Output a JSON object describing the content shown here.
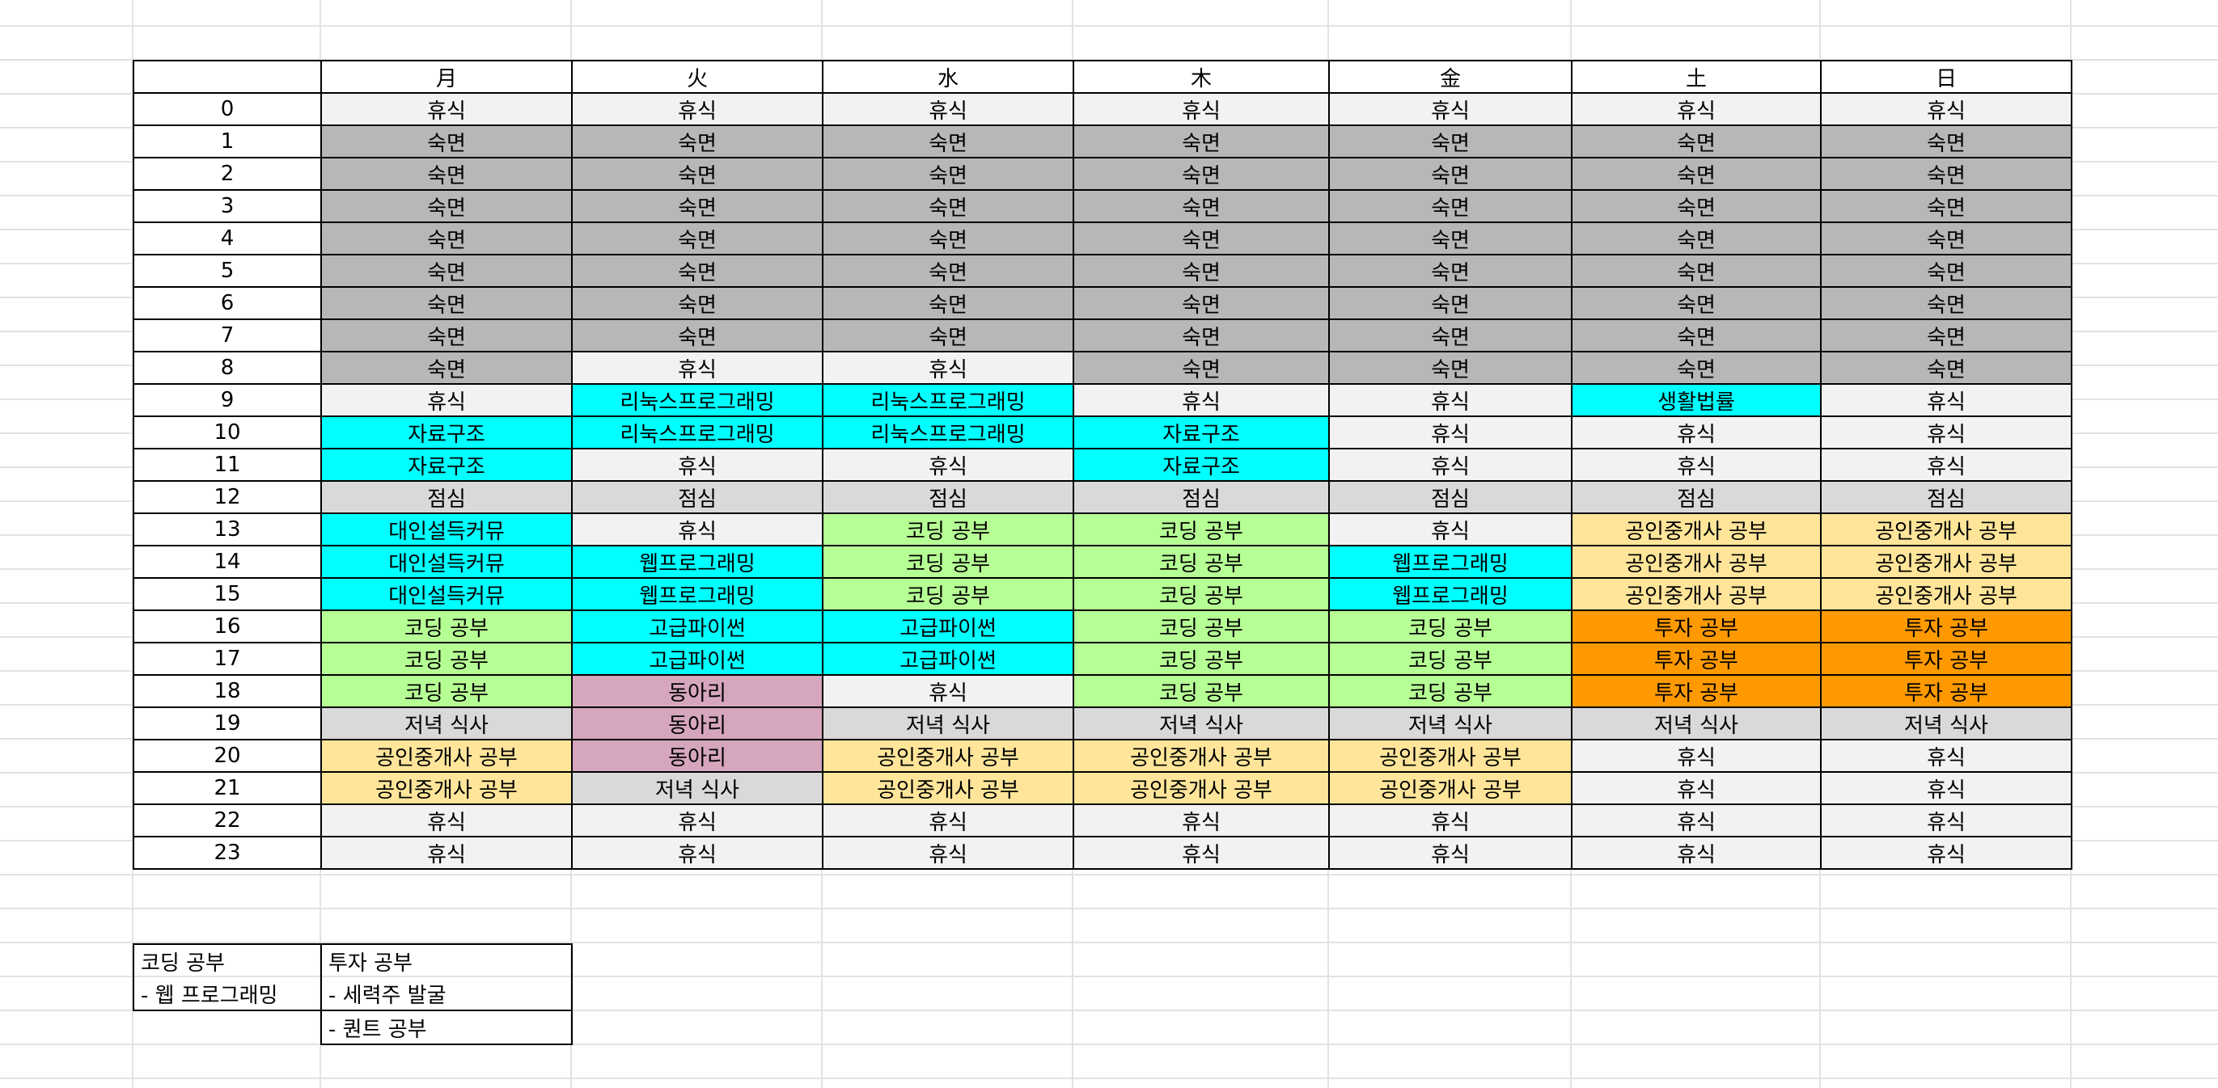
{
  "colors": {
    "rest": "#f2f2f2",
    "sleep": "#b7b7b7",
    "meal": "#d9d9d9",
    "study": "#00ffff",
    "coding": "#b6ff94",
    "realty": "#ffe599",
    "invest": "#ff9900",
    "club": "#d5a6bd",
    "gridline": "#e2e2e2"
  },
  "timetable": {
    "days": [
      "月",
      "火",
      "水",
      "木",
      "金",
      "土",
      "日"
    ],
    "rows": [
      {
        "hour": "0",
        "cells": [
          {
            "text": "휴식",
            "cat": "rest"
          },
          {
            "text": "휴식",
            "cat": "rest"
          },
          {
            "text": "휴식",
            "cat": "rest"
          },
          {
            "text": "휴식",
            "cat": "rest"
          },
          {
            "text": "휴식",
            "cat": "rest"
          },
          {
            "text": "휴식",
            "cat": "rest"
          },
          {
            "text": "휴식",
            "cat": "rest"
          }
        ]
      },
      {
        "hour": "1",
        "cells": [
          {
            "text": "숙면",
            "cat": "sleep"
          },
          {
            "text": "숙면",
            "cat": "sleep"
          },
          {
            "text": "숙면",
            "cat": "sleep"
          },
          {
            "text": "숙면",
            "cat": "sleep"
          },
          {
            "text": "숙면",
            "cat": "sleep"
          },
          {
            "text": "숙면",
            "cat": "sleep"
          },
          {
            "text": "숙면",
            "cat": "sleep"
          }
        ]
      },
      {
        "hour": "2",
        "cells": [
          {
            "text": "숙면",
            "cat": "sleep"
          },
          {
            "text": "숙면",
            "cat": "sleep"
          },
          {
            "text": "숙면",
            "cat": "sleep"
          },
          {
            "text": "숙면",
            "cat": "sleep"
          },
          {
            "text": "숙면",
            "cat": "sleep"
          },
          {
            "text": "숙면",
            "cat": "sleep"
          },
          {
            "text": "숙면",
            "cat": "sleep"
          }
        ]
      },
      {
        "hour": "3",
        "cells": [
          {
            "text": "숙면",
            "cat": "sleep"
          },
          {
            "text": "숙면",
            "cat": "sleep"
          },
          {
            "text": "숙면",
            "cat": "sleep"
          },
          {
            "text": "숙면",
            "cat": "sleep"
          },
          {
            "text": "숙면",
            "cat": "sleep"
          },
          {
            "text": "숙면",
            "cat": "sleep"
          },
          {
            "text": "숙면",
            "cat": "sleep"
          }
        ]
      },
      {
        "hour": "4",
        "cells": [
          {
            "text": "숙면",
            "cat": "sleep"
          },
          {
            "text": "숙면",
            "cat": "sleep"
          },
          {
            "text": "숙면",
            "cat": "sleep"
          },
          {
            "text": "숙면",
            "cat": "sleep"
          },
          {
            "text": "숙면",
            "cat": "sleep"
          },
          {
            "text": "숙면",
            "cat": "sleep"
          },
          {
            "text": "숙면",
            "cat": "sleep"
          }
        ]
      },
      {
        "hour": "5",
        "cells": [
          {
            "text": "숙면",
            "cat": "sleep"
          },
          {
            "text": "숙면",
            "cat": "sleep"
          },
          {
            "text": "숙면",
            "cat": "sleep"
          },
          {
            "text": "숙면",
            "cat": "sleep"
          },
          {
            "text": "숙면",
            "cat": "sleep"
          },
          {
            "text": "숙면",
            "cat": "sleep"
          },
          {
            "text": "숙면",
            "cat": "sleep"
          }
        ]
      },
      {
        "hour": "6",
        "cells": [
          {
            "text": "숙면",
            "cat": "sleep"
          },
          {
            "text": "숙면",
            "cat": "sleep"
          },
          {
            "text": "숙면",
            "cat": "sleep"
          },
          {
            "text": "숙면",
            "cat": "sleep"
          },
          {
            "text": "숙면",
            "cat": "sleep"
          },
          {
            "text": "숙면",
            "cat": "sleep"
          },
          {
            "text": "숙면",
            "cat": "sleep"
          }
        ]
      },
      {
        "hour": "7",
        "cells": [
          {
            "text": "숙면",
            "cat": "sleep"
          },
          {
            "text": "숙면",
            "cat": "sleep"
          },
          {
            "text": "숙면",
            "cat": "sleep"
          },
          {
            "text": "숙면",
            "cat": "sleep"
          },
          {
            "text": "숙면",
            "cat": "sleep"
          },
          {
            "text": "숙면",
            "cat": "sleep"
          },
          {
            "text": "숙면",
            "cat": "sleep"
          }
        ]
      },
      {
        "hour": "8",
        "cells": [
          {
            "text": "숙면",
            "cat": "sleep"
          },
          {
            "text": "휴식",
            "cat": "rest"
          },
          {
            "text": "휴식",
            "cat": "rest"
          },
          {
            "text": "숙면",
            "cat": "sleep"
          },
          {
            "text": "숙면",
            "cat": "sleep"
          },
          {
            "text": "숙면",
            "cat": "sleep"
          },
          {
            "text": "숙면",
            "cat": "sleep"
          }
        ]
      },
      {
        "hour": "9",
        "cells": [
          {
            "text": "휴식",
            "cat": "rest"
          },
          {
            "text": "리눅스프로그래밍",
            "cat": "study"
          },
          {
            "text": "리눅스프로그래밍",
            "cat": "study"
          },
          {
            "text": "휴식",
            "cat": "rest"
          },
          {
            "text": "휴식",
            "cat": "rest"
          },
          {
            "text": "생활법률",
            "cat": "study"
          },
          {
            "text": "휴식",
            "cat": "rest"
          }
        ]
      },
      {
        "hour": "10",
        "cells": [
          {
            "text": "자료구조",
            "cat": "study"
          },
          {
            "text": "리눅스프로그래밍",
            "cat": "study"
          },
          {
            "text": "리눅스프로그래밍",
            "cat": "study"
          },
          {
            "text": "자료구조",
            "cat": "study"
          },
          {
            "text": "휴식",
            "cat": "rest"
          },
          {
            "text": "휴식",
            "cat": "rest"
          },
          {
            "text": "휴식",
            "cat": "rest"
          }
        ]
      },
      {
        "hour": "11",
        "cells": [
          {
            "text": "자료구조",
            "cat": "study"
          },
          {
            "text": "휴식",
            "cat": "rest"
          },
          {
            "text": "휴식",
            "cat": "rest"
          },
          {
            "text": "자료구조",
            "cat": "study"
          },
          {
            "text": "휴식",
            "cat": "rest"
          },
          {
            "text": "휴식",
            "cat": "rest"
          },
          {
            "text": "휴식",
            "cat": "rest"
          }
        ]
      },
      {
        "hour": "12",
        "cells": [
          {
            "text": "점심",
            "cat": "meal"
          },
          {
            "text": "점심",
            "cat": "meal"
          },
          {
            "text": "점심",
            "cat": "meal"
          },
          {
            "text": "점심",
            "cat": "meal"
          },
          {
            "text": "점심",
            "cat": "meal"
          },
          {
            "text": "점심",
            "cat": "meal"
          },
          {
            "text": "점심",
            "cat": "meal"
          }
        ]
      },
      {
        "hour": "13",
        "cells": [
          {
            "text": "대인설득커뮤",
            "cat": "study"
          },
          {
            "text": "휴식",
            "cat": "rest"
          },
          {
            "text": "코딩 공부",
            "cat": "coding"
          },
          {
            "text": "코딩 공부",
            "cat": "coding"
          },
          {
            "text": "휴식",
            "cat": "rest"
          },
          {
            "text": "공인중개사 공부",
            "cat": "realty"
          },
          {
            "text": "공인중개사 공부",
            "cat": "realty"
          }
        ]
      },
      {
        "hour": "14",
        "cells": [
          {
            "text": "대인설득커뮤",
            "cat": "study"
          },
          {
            "text": "웹프로그래밍",
            "cat": "study"
          },
          {
            "text": "코딩 공부",
            "cat": "coding"
          },
          {
            "text": "코딩 공부",
            "cat": "coding"
          },
          {
            "text": "웹프로그래밍",
            "cat": "study"
          },
          {
            "text": "공인중개사 공부",
            "cat": "realty"
          },
          {
            "text": "공인중개사 공부",
            "cat": "realty"
          }
        ]
      },
      {
        "hour": "15",
        "cells": [
          {
            "text": "대인설득커뮤",
            "cat": "study"
          },
          {
            "text": "웹프로그래밍",
            "cat": "study"
          },
          {
            "text": "코딩 공부",
            "cat": "coding"
          },
          {
            "text": "코딩 공부",
            "cat": "coding"
          },
          {
            "text": "웹프로그래밍",
            "cat": "study"
          },
          {
            "text": "공인중개사 공부",
            "cat": "realty"
          },
          {
            "text": "공인중개사 공부",
            "cat": "realty"
          }
        ]
      },
      {
        "hour": "16",
        "cells": [
          {
            "text": "코딩 공부",
            "cat": "coding"
          },
          {
            "text": "고급파이썬",
            "cat": "study"
          },
          {
            "text": "고급파이썬",
            "cat": "study"
          },
          {
            "text": "코딩 공부",
            "cat": "coding"
          },
          {
            "text": "코딩 공부",
            "cat": "coding"
          },
          {
            "text": "투자 공부",
            "cat": "invest"
          },
          {
            "text": "투자 공부",
            "cat": "invest"
          }
        ]
      },
      {
        "hour": "17",
        "cells": [
          {
            "text": "코딩 공부",
            "cat": "coding"
          },
          {
            "text": "고급파이썬",
            "cat": "study"
          },
          {
            "text": "고급파이썬",
            "cat": "study"
          },
          {
            "text": "코딩 공부",
            "cat": "coding"
          },
          {
            "text": "코딩 공부",
            "cat": "coding"
          },
          {
            "text": "투자 공부",
            "cat": "invest"
          },
          {
            "text": "투자 공부",
            "cat": "invest"
          }
        ]
      },
      {
        "hour": "18",
        "cells": [
          {
            "text": "코딩 공부",
            "cat": "coding"
          },
          {
            "text": "동아리",
            "cat": "club"
          },
          {
            "text": "휴식",
            "cat": "rest"
          },
          {
            "text": "코딩 공부",
            "cat": "coding"
          },
          {
            "text": "코딩 공부",
            "cat": "coding"
          },
          {
            "text": "투자 공부",
            "cat": "invest"
          },
          {
            "text": "투자 공부",
            "cat": "invest"
          }
        ]
      },
      {
        "hour": "19",
        "cells": [
          {
            "text": "저녁 식사",
            "cat": "meal"
          },
          {
            "text": "동아리",
            "cat": "club"
          },
          {
            "text": "저녁 식사",
            "cat": "meal"
          },
          {
            "text": "저녁 식사",
            "cat": "meal"
          },
          {
            "text": "저녁 식사",
            "cat": "meal"
          },
          {
            "text": "저녁 식사",
            "cat": "meal"
          },
          {
            "text": "저녁 식사",
            "cat": "meal"
          }
        ]
      },
      {
        "hour": "20",
        "cells": [
          {
            "text": "공인중개사 공부",
            "cat": "realty"
          },
          {
            "text": "동아리",
            "cat": "club"
          },
          {
            "text": "공인중개사 공부",
            "cat": "realty"
          },
          {
            "text": "공인중개사 공부",
            "cat": "realty"
          },
          {
            "text": "공인중개사 공부",
            "cat": "realty"
          },
          {
            "text": "휴식",
            "cat": "rest"
          },
          {
            "text": "휴식",
            "cat": "rest"
          }
        ]
      },
      {
        "hour": "21",
        "cells": [
          {
            "text": "공인중개사 공부",
            "cat": "realty"
          },
          {
            "text": "저녁 식사",
            "cat": "meal"
          },
          {
            "text": "공인중개사 공부",
            "cat": "realty"
          },
          {
            "text": "공인중개사 공부",
            "cat": "realty"
          },
          {
            "text": "공인중개사 공부",
            "cat": "realty"
          },
          {
            "text": "휴식",
            "cat": "rest"
          },
          {
            "text": "휴식",
            "cat": "rest"
          }
        ]
      },
      {
        "hour": "22",
        "cells": [
          {
            "text": "휴식",
            "cat": "rest"
          },
          {
            "text": "휴식",
            "cat": "rest"
          },
          {
            "text": "휴식",
            "cat": "rest"
          },
          {
            "text": "휴식",
            "cat": "rest"
          },
          {
            "text": "휴식",
            "cat": "rest"
          },
          {
            "text": "휴식",
            "cat": "rest"
          },
          {
            "text": "휴식",
            "cat": "rest"
          }
        ]
      },
      {
        "hour": "23",
        "cells": [
          {
            "text": "휴식",
            "cat": "rest"
          },
          {
            "text": "휴식",
            "cat": "rest"
          },
          {
            "text": "휴식",
            "cat": "rest"
          },
          {
            "text": "휴식",
            "cat": "rest"
          },
          {
            "text": "휴식",
            "cat": "rest"
          },
          {
            "text": "휴식",
            "cat": "rest"
          },
          {
            "text": "휴식",
            "cat": "rest"
          }
        ]
      }
    ]
  },
  "notes": {
    "coding_title": "코딩 공부",
    "coding_items": [
      "- 웹 프로그래밍"
    ],
    "invest_title": "투자 공부",
    "invest_items": [
      "- 세력주 발굴",
      "- 퀀트 공부"
    ]
  }
}
